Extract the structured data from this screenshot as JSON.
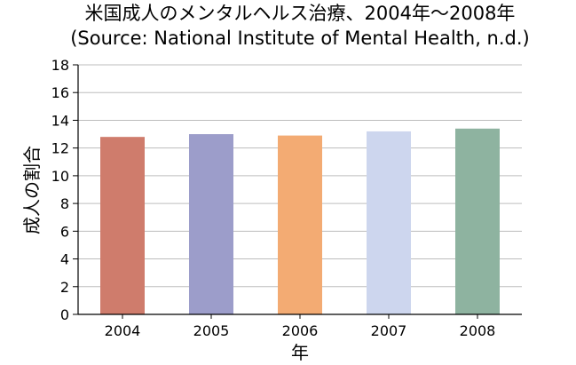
{
  "chart_data": {
    "type": "bar",
    "title": "米国成人のメンタルヘルス治療、2004年～2008年",
    "subtitle": "(Source: National Institute of Mental Health, n.d.)",
    "xlabel": "年",
    "ylabel": "成人の割合",
    "categories": [
      "2004",
      "2005",
      "2006",
      "2007",
      "2008"
    ],
    "values": [
      12.8,
      13.0,
      12.9,
      13.2,
      13.4
    ],
    "colors": [
      "#cf7c6c",
      "#9c9dca",
      "#f3ab73",
      "#cdd6ee",
      "#8eb3a0"
    ],
    "ylim": [
      0,
      18
    ],
    "yticks": [
      "0",
      "2",
      "4",
      "6",
      "8",
      "10",
      "12",
      "14",
      "16",
      "18"
    ],
    "grid": true,
    "legend": "none"
  }
}
